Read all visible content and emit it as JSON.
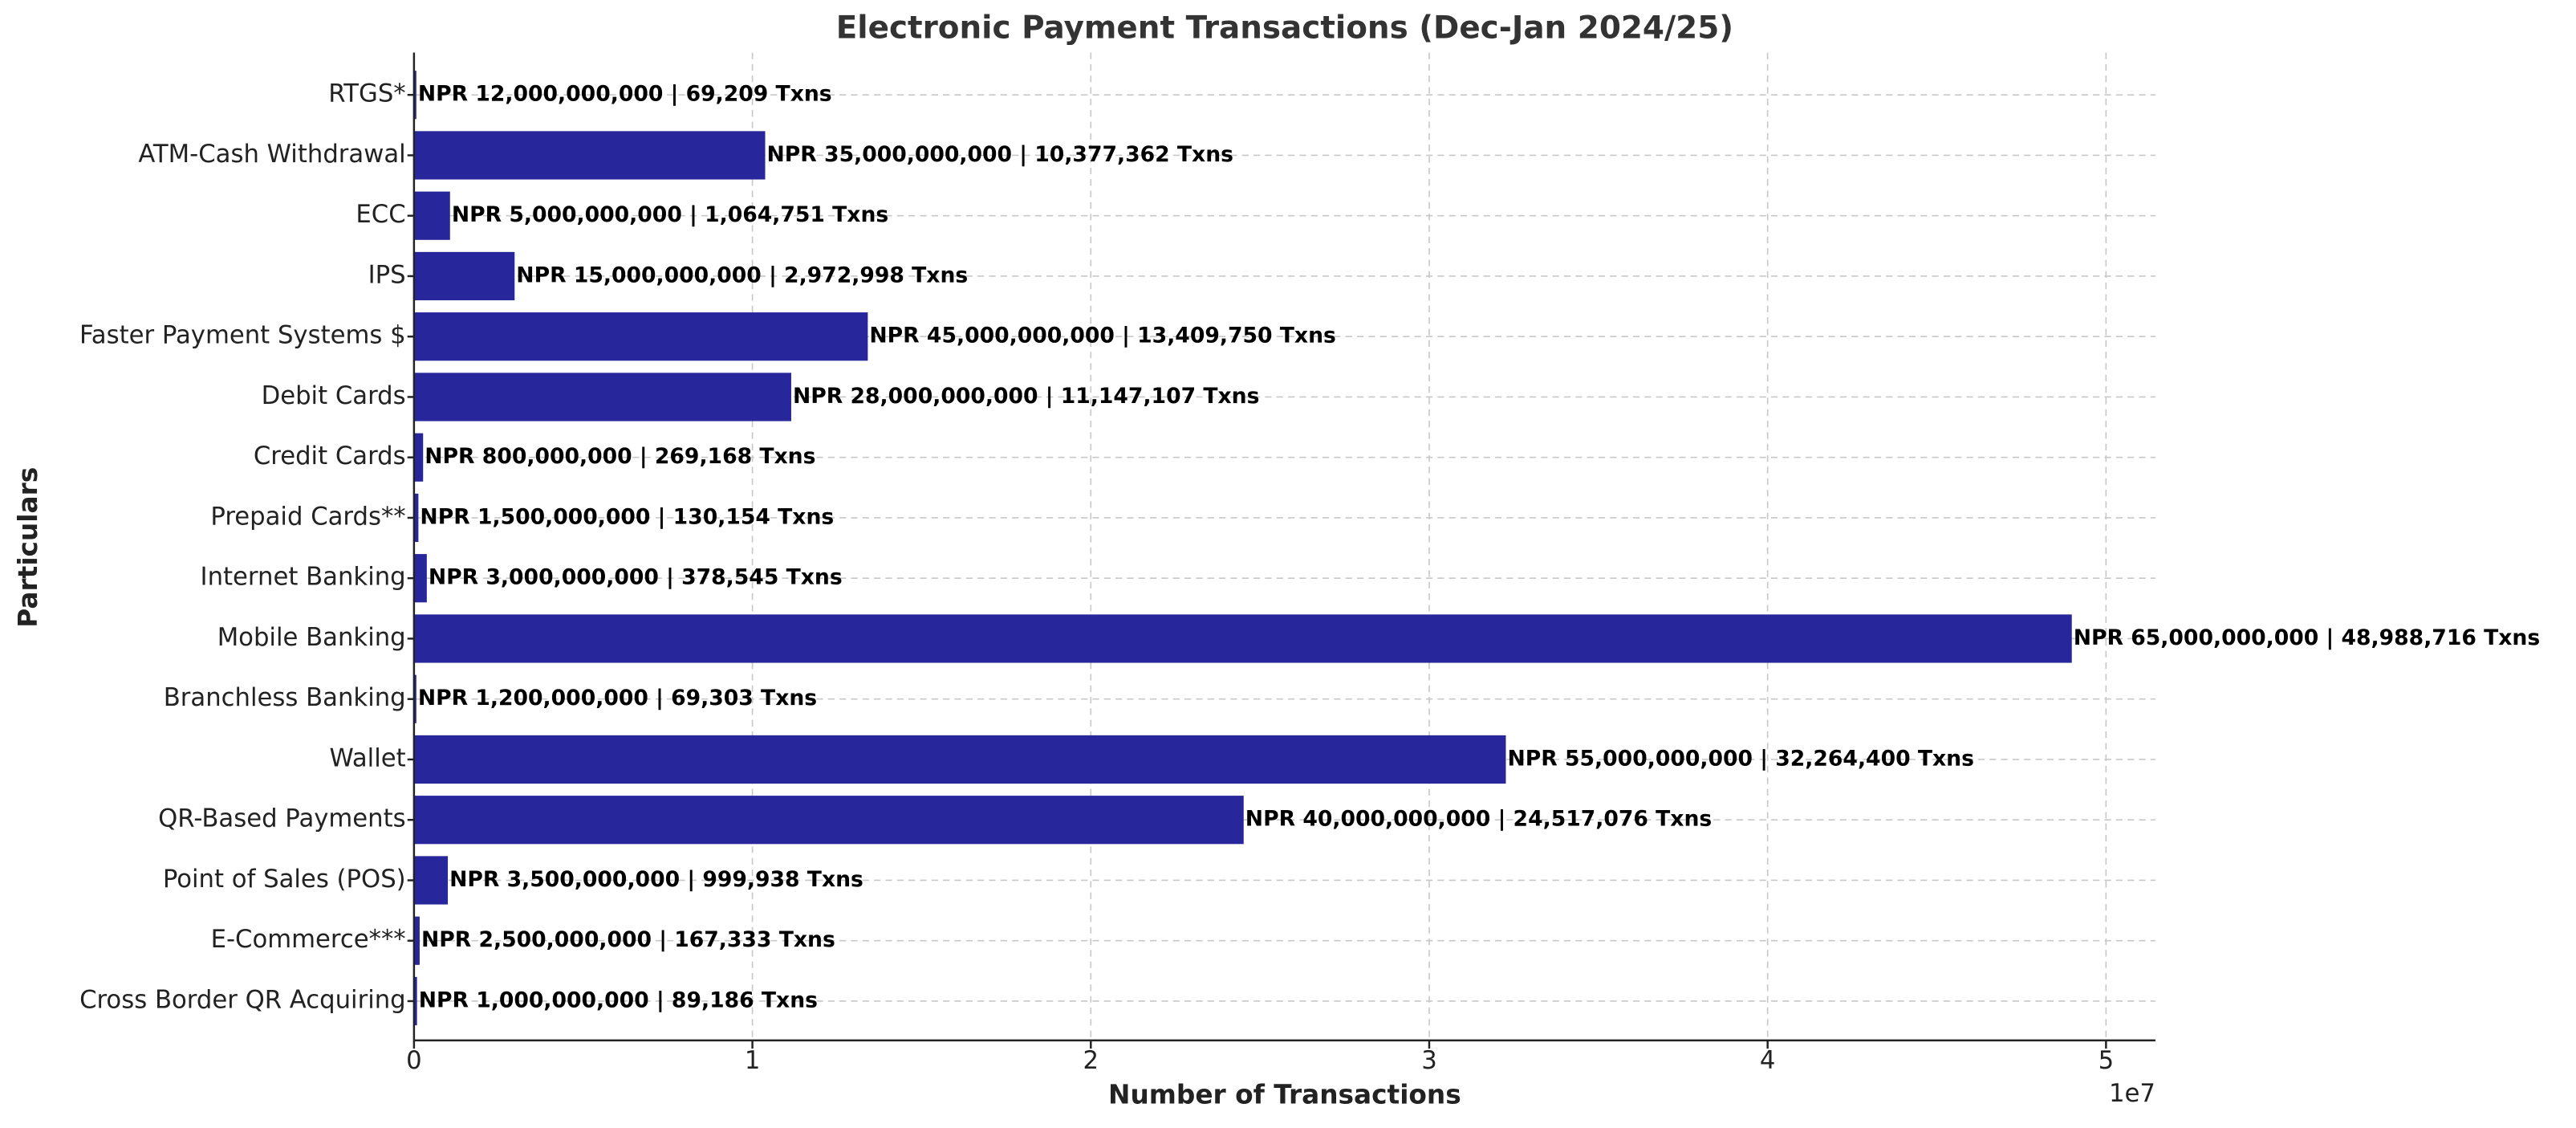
{
  "chart_data": {
    "type": "barh",
    "title": "Electronic Payment Transactions (Dec-Jan 2024/25)",
    "x_label": "Number of Transactions",
    "y_label": "Particulars",
    "x_offset_label": "1e7",
    "categories": [
      "RTGS*",
      "ATM-Cash Withdrawal",
      "ECC",
      "IPS",
      "Faster Payment Systems $",
      "Debit Cards",
      "Credit Cards",
      "Prepaid Cards**",
      "Internet Banking",
      "Mobile Banking",
      "Branchless Banking",
      "Wallet",
      "QR-Based Payments",
      "Point of Sales (POS)",
      "E-Commerce***",
      "Cross Border QR Acquiring"
    ],
    "values": [
      69209,
      10377362,
      1064751,
      2972998,
      13409750,
      11147107,
      269168,
      130154,
      378545,
      48988716,
      69303,
      32264400,
      24517076,
      999938,
      167333,
      89186
    ],
    "value_labels": [
      "NPR 12,000,000,000 | 69,209 Txns",
      "NPR 35,000,000,000 | 10,377,362 Txns",
      "NPR 5,000,000,000 | 1,064,751 Txns",
      "NPR 15,000,000,000 | 2,972,998 Txns",
      "NPR 45,000,000,000 | 13,409,750 Txns",
      "NPR 28,000,000,000 | 11,147,107 Txns",
      "NPR 800,000,000 | 269,168 Txns",
      "NPR 1,500,000,000 | 130,154 Txns",
      "NPR 3,000,000,000 | 378,545 Txns",
      "NPR 65,000,000,000 | 48,988,716 Txns",
      "NPR 1,200,000,000 | 69,303 Txns",
      "NPR 55,000,000,000 | 32,264,400 Txns",
      "NPR 40,000,000,000 | 24,517,076 Txns",
      "NPR 3,500,000,000 | 999,938 Txns",
      "NPR 2,500,000,000 | 167,333 Txns",
      "NPR 1,000,000,000 | 89,186 Txns"
    ],
    "color": "#27279b",
    "xlim": [
      0,
      51460000
    ],
    "xticks": [
      0,
      {
        "value": 10000000,
        "label": "1"
      },
      {
        "value": 20000000,
        "label": "2"
      },
      {
        "value": 30000000,
        "label": "3"
      },
      {
        "value": 40000000,
        "label": "4"
      },
      {
        "value": 50000000,
        "label": "5"
      }
    ],
    "grid": true
  }
}
